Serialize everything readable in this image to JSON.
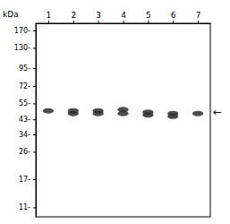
{
  "chart_data": {
    "type": "scatter",
    "y_label": "kDa",
    "x": [
      1,
      2,
      2,
      3,
      3,
      4,
      4,
      5,
      5,
      6,
      6,
      7
    ],
    "values": [
      49,
      49,
      47,
      49,
      47,
      50,
      47,
      48,
      46,
      47,
      45,
      47
    ],
    "color": "#2e2e2e",
    "xlim": [
      0.5,
      7.5
    ],
    "xticks": [
      1,
      2,
      3,
      4,
      5,
      6,
      7
    ],
    "ylim": [
      9.5,
      190
    ],
    "yticks": [
      {
        "value": 170,
        "label": "170-"
      },
      {
        "value": 130,
        "label": "130-"
      },
      {
        "value": 95,
        "label": "95-"
      },
      {
        "value": 72,
        "label": "72-"
      },
      {
        "value": 55,
        "label": "55-"
      },
      {
        "value": 43,
        "label": "43-"
      },
      {
        "value": 34,
        "label": "34-"
      },
      {
        "value": 26,
        "label": "26-"
      },
      {
        "value": 17,
        "label": "17-"
      },
      {
        "value": 11,
        "label": "11-"
      }
    ],
    "log": "y",
    "annotations": [
      {
        "text": "←",
        "y": 48
      }
    ]
  }
}
